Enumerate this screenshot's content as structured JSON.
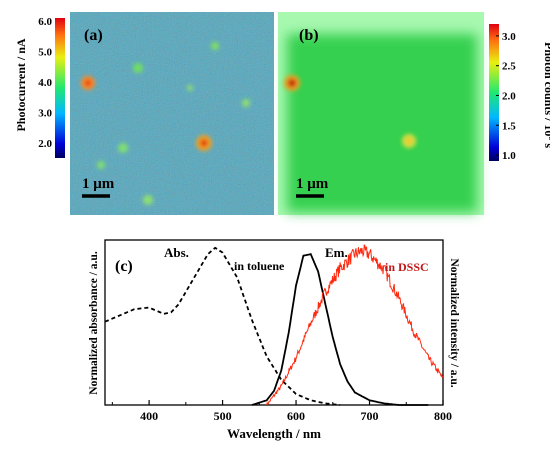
{
  "panel_a": {
    "label": "(a)",
    "scale_bar": "1 μm",
    "colorbar_label": "Photocurrent / nA",
    "colorbar_ticks": [
      "6.0",
      "5.0",
      "4.0",
      "3.0",
      "2.0"
    ],
    "colorbar_tick_values": [
      6.0,
      5.0,
      4.0,
      3.0,
      2.0
    ],
    "colorbar_range": [
      1.5,
      6.1
    ]
  },
  "panel_b": {
    "label": "(b)",
    "scale_bar": "1 μm",
    "colorbar_label_main": "Photon counts / 10",
    "colorbar_label_sup": "8",
    "colorbar_label_unit": " s",
    "colorbar_ticks": [
      "3.0",
      "2.5",
      "2.0",
      "1.5",
      "1.0"
    ],
    "colorbar_tick_values": [
      3.0,
      2.5,
      2.0,
      1.5,
      1.0
    ],
    "colorbar_range": [
      0.9,
      3.2
    ]
  },
  "colors": {
    "map_background_a": "#4fb6c8",
    "map_background_b": "#36d050",
    "em_dssc": "#ff2a10",
    "axis": "#000000"
  },
  "chart_data": {
    "type": "line",
    "panel_label": "(c)",
    "xlabel": "Wavelength / nm",
    "ylabel_left": "Normalized absorbance / a.u.",
    "ylabel_right": "Normalized intensity / a.u.",
    "xlim": [
      340,
      800
    ],
    "ylim": [
      0,
      1.05
    ],
    "x_ticks": [
      "400",
      "500",
      "600",
      "700",
      "800"
    ],
    "x_tick_values": [
      400,
      500,
      600,
      700,
      800
    ],
    "annotations": {
      "abs": "Abs.",
      "toluene": "in toluene",
      "em": "Em.",
      "dssc": "in DSSC"
    },
    "series": [
      {
        "key": "abs",
        "style": "dashed",
        "color": "#000000",
        "x": [
          340,
          360,
          380,
          400,
          420,
          430,
          440,
          460,
          480,
          490,
          500,
          520,
          540,
          560,
          580,
          600,
          620,
          640,
          660
        ],
        "y": [
          0.53,
          0.57,
          0.61,
          0.62,
          0.58,
          0.59,
          0.64,
          0.8,
          0.96,
          1.0,
          0.97,
          0.81,
          0.54,
          0.31,
          0.16,
          0.07,
          0.03,
          0.01,
          0.0
        ]
      },
      {
        "key": "em_toluene",
        "style": "solid",
        "color": "#000000",
        "x": [
          540,
          560,
          570,
          580,
          590,
          600,
          610,
          620,
          630,
          640,
          650,
          660,
          670,
          680,
          700,
          720,
          740,
          760,
          780
        ],
        "y": [
          0.0,
          0.03,
          0.09,
          0.22,
          0.46,
          0.76,
          0.95,
          0.96,
          0.85,
          0.64,
          0.43,
          0.26,
          0.15,
          0.08,
          0.03,
          0.01,
          0.0,
          0.0,
          0.0
        ]
      },
      {
        "key": "em_dssc",
        "style": "noisy",
        "color": "#ff2a10",
        "x": [
          560,
          580,
          600,
          620,
          640,
          660,
          680,
          690,
          700,
          720,
          740,
          760,
          780,
          800
        ],
        "y": [
          0.0,
          0.12,
          0.3,
          0.52,
          0.72,
          0.87,
          0.96,
          0.98,
          0.96,
          0.86,
          0.68,
          0.47,
          0.3,
          0.17
        ]
      }
    ]
  }
}
